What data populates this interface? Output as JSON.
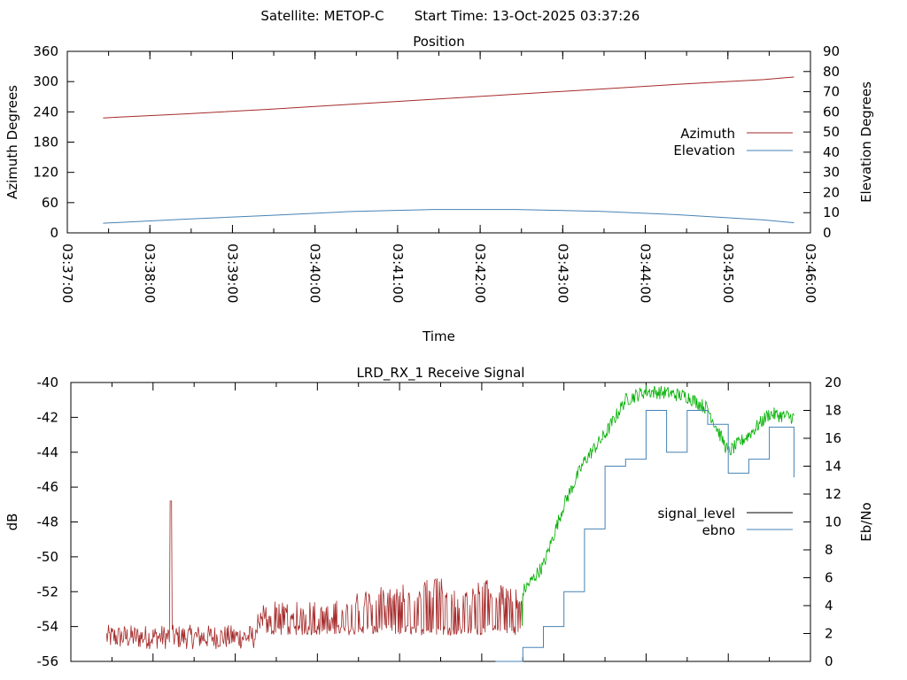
{
  "header": {
    "satellite": "Satellite: METOP-C",
    "start_time": "Start Time: 13-Oct-2025 03:37:26"
  },
  "colors": {
    "azimuth": "#a52a2a",
    "elevation": "#4682b4",
    "signal_low": "#a52a2a",
    "signal_high": "#00b000",
    "signal_legend": "#000000",
    "ebno": "#4682b4",
    "axis": "#000000"
  },
  "chart_data": [
    {
      "type": "line",
      "title": "Position",
      "xlabel": "Time",
      "ylabel": "Azimuth Degrees",
      "y2label": "Elevation Degrees",
      "xlim": [
        "03:37:00",
        "03:46:00"
      ],
      "xticks": [
        "03:37:00",
        "03:38:00",
        "03:39:00",
        "03:40:00",
        "03:41:00",
        "03:42:00",
        "03:43:00",
        "03:44:00",
        "03:45:00",
        "03:46:00"
      ],
      "ylim": [
        0,
        360
      ],
      "yticks": [
        0,
        60,
        120,
        180,
        240,
        300,
        360
      ],
      "y2lim": [
        0,
        90
      ],
      "y2ticks": [
        0,
        10,
        20,
        30,
        40,
        50,
        60,
        70,
        80,
        90
      ],
      "grid": false,
      "legend_position": "right",
      "series": [
        {
          "name": "Azimuth",
          "axis": "y",
          "x": [
            "03:37:26",
            "03:38:26",
            "03:39:26",
            "03:40:26",
            "03:41:26",
            "03:42:26",
            "03:43:26",
            "03:44:26",
            "03:45:26",
            "03:45:48"
          ],
          "values": [
            228,
            236,
            245,
            255,
            265,
            275,
            285,
            295,
            304,
            309
          ]
        },
        {
          "name": "Elevation",
          "axis": "y2",
          "x": [
            "03:37:26",
            "03:38:26",
            "03:39:26",
            "03:40:26",
            "03:41:26",
            "03:42:26",
            "03:43:26",
            "03:44:26",
            "03:45:26",
            "03:45:48"
          ],
          "values": [
            4.8,
            6.8,
            8.6,
            10.6,
            11.6,
            11.6,
            10.7,
            8.9,
            6.4,
            5.0
          ]
        }
      ]
    },
    {
      "type": "line",
      "title": "LRD_RX_1 Receive Signal",
      "xlabel": "",
      "ylabel": "dB",
      "y2label": "Eb/No",
      "xlim": [
        "03:37:00",
        "03:46:00"
      ],
      "ylim": [
        -56,
        -40
      ],
      "yticks": [
        -56,
        -54,
        -52,
        -50,
        -48,
        -46,
        -44,
        -42,
        -40
      ],
      "y2lim": [
        0,
        20
      ],
      "y2ticks": [
        0,
        2,
        4,
        6,
        8,
        10,
        12,
        14,
        16,
        18,
        20
      ],
      "grid": false,
      "legend_position": "right",
      "series": [
        {
          "name": "signal_level",
          "axis": "y",
          "x": [
            "03:37:26",
            "03:37:45",
            "03:38:00",
            "03:38:13",
            "03:38:15",
            "03:38:30",
            "03:39:00",
            "03:39:15",
            "03:39:30",
            "03:40:00",
            "03:40:30",
            "03:41:00",
            "03:41:30",
            "03:41:45",
            "03:42:00",
            "03:42:30",
            "03:42:45",
            "03:43:00",
            "03:43:15",
            "03:43:30",
            "03:43:45",
            "03:44:00",
            "03:44:15",
            "03:44:30",
            "03:44:45",
            "03:45:00",
            "03:45:15",
            "03:45:30",
            "03:45:48"
          ],
          "values": [
            -55.0,
            -54.6,
            -54.8,
            -46.8,
            -54.5,
            -54.6,
            -54.5,
            -53.0,
            -52.3,
            -52.6,
            -52.0,
            -51.5,
            -51.2,
            -52.0,
            -51.2,
            -52.0,
            -50.5,
            -47.0,
            -44.5,
            -43.0,
            -41.0,
            -40.5,
            -40.6,
            -40.8,
            -41.5,
            -44.0,
            -43.0,
            -41.8,
            -42.0
          ]
        },
        {
          "name": "ebno",
          "axis": "y2",
          "x": [
            "03:42:10",
            "03:42:30",
            "03:42:45",
            "03:43:00",
            "03:43:15",
            "03:43:30",
            "03:43:45",
            "03:44:00",
            "03:44:15",
            "03:44:30",
            "03:44:45",
            "03:45:00",
            "03:45:15",
            "03:45:30",
            "03:45:48"
          ],
          "values": [
            0,
            1,
            2.5,
            5,
            9.5,
            14,
            14.5,
            18,
            15,
            18,
            17,
            13.5,
            14.5,
            16.8,
            13.2
          ]
        }
      ]
    }
  ]
}
